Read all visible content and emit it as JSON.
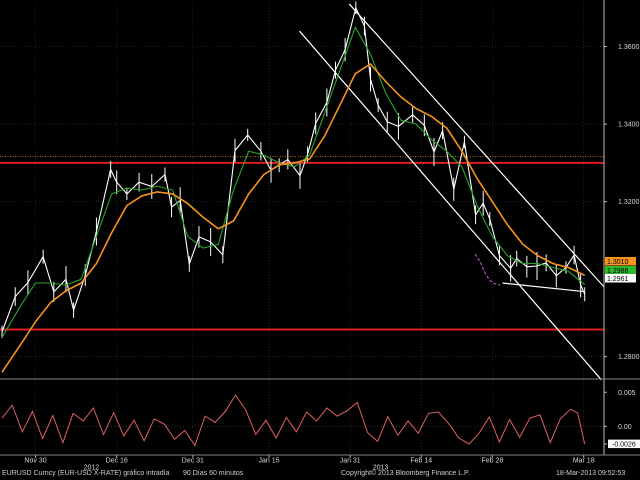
{
  "chart_data": {
    "type": "line",
    "price_axis": {
      "ticks": [
        "1.3600",
        "1.3400",
        "1.3200",
        "1.2800"
      ],
      "tick_values": [
        1.36,
        1.34,
        1.32,
        1.28
      ],
      "ylim": [
        1.2745,
        1.3715
      ],
      "last_price_labels": [
        {
          "value": 1.301,
          "text": "1.3010",
          "color": "#f7941d"
        },
        {
          "value": 1.2986,
          "text": "1.2986",
          "color": "#2eb82e"
        },
        {
          "value": 1.2961,
          "text": "1.2961",
          "color": "#ffffff"
        }
      ]
    },
    "oscillator_axis": {
      "ticks": [
        "0.005",
        "0.00",
        "-0.0026"
      ],
      "tick_values": [
        0.005,
        0.0,
        -0.0026
      ],
      "ylim": [
        -0.0042,
        0.0068
      ]
    },
    "x_ticks": [
      {
        "label": "Nov 30",
        "day": 0
      },
      {
        "label": "Dec 16",
        "day": 16
      },
      {
        "label": "Dec 31",
        "day": 31
      },
      {
        "label": "Jan 15",
        "day": 46
      },
      {
        "label": "Jan 31",
        "day": 62
      },
      {
        "label": "Feb 14",
        "day": 76
      },
      {
        "label": "Feb 28",
        "day": 90
      },
      {
        "label": "Mar 18",
        "day": 108
      }
    ],
    "year_labels": [
      {
        "label": "2012",
        "day": 11
      },
      {
        "label": "2013",
        "day": 68
      }
    ],
    "xlim": [
      -7,
      112
    ],
    "series": [
      {
        "role": "price",
        "color": "#ffffff",
        "days": [
          -6.6,
          -4.0,
          -1.5,
          1.5,
          3.6,
          6.0,
          7.5,
          9.8,
          12.0,
          14.8,
          16.0,
          18.0,
          20.4,
          22.9,
          25.5,
          26.8,
          28.5,
          30.3,
          32.2,
          34.5,
          36.9,
          39.3,
          41.8,
          44.4,
          46.4,
          48.0,
          49.7,
          52.1,
          53.6,
          55.2,
          57.4,
          59.1,
          61.0,
          63.1,
          64.8,
          66.0,
          67.5,
          69.3,
          71.5,
          74.3,
          76.6,
          78.5,
          80.2,
          82.4,
          84.5,
          86.7,
          88.2,
          89.5,
          91.4,
          93.6,
          94.8,
          96.8,
          98.8,
          100.6,
          102.6,
          104.5,
          106.1,
          107.4,
          108.2
        ],
        "values": [
          1.2864,
          1.2955,
          1.2991,
          1.3058,
          1.2967,
          1.3,
          1.292,
          1.301,
          1.3123,
          1.3283,
          1.325,
          1.322,
          1.325,
          1.3239,
          1.327,
          1.3186,
          1.3203,
          1.3039,
          1.3109,
          1.3096,
          1.3063,
          1.3332,
          1.3372,
          1.333,
          1.3281,
          1.3294,
          1.3309,
          1.3267,
          1.3322,
          1.3402,
          1.3456,
          1.3539,
          1.3592,
          1.37,
          1.3653,
          1.3516,
          1.3449,
          1.3406,
          1.3394,
          1.3424,
          1.3397,
          1.3328,
          1.3383,
          1.3232,
          1.3354,
          1.3166,
          1.3196,
          1.3155,
          1.3061,
          1.3028,
          1.3053,
          1.3032,
          1.3034,
          1.3042,
          1.3009,
          1.303,
          1.3062,
          1.2985,
          1.2961
        ]
      },
      {
        "role": "moving-average-fast",
        "color": "#27a627",
        "days": [
          -6.6,
          -3.0,
          0.0,
          3.0,
          6.0,
          9.0,
          12.0,
          15.0,
          18.0,
          21.0,
          24.0,
          27.0,
          30.0,
          33.0,
          36.0,
          39.0,
          42.0,
          45.0,
          48.0,
          51.0,
          54.0,
          57.0,
          60.0,
          63.0,
          66.0,
          69.0,
          72.0,
          75.0,
          78.0,
          81.0,
          84.0,
          87.0,
          90.0,
          93.0,
          96.0,
          99.0,
          102.0,
          105.0,
          108.2
        ],
        "values": [
          1.285,
          1.293,
          1.299,
          1.299,
          1.2985,
          1.3,
          1.311,
          1.322,
          1.3235,
          1.323,
          1.324,
          1.323,
          1.311,
          1.308,
          1.309,
          1.323,
          1.333,
          1.332,
          1.33,
          1.329,
          1.332,
          1.343,
          1.354,
          1.365,
          1.358,
          1.348,
          1.341,
          1.34,
          1.336,
          1.333,
          1.329,
          1.319,
          1.311,
          1.306,
          1.304,
          1.304,
          1.303,
          1.302,
          1.2986
        ]
      },
      {
        "role": "moving-average-slow",
        "color": "#f7941d",
        "days": [
          -6.6,
          -3.0,
          0.0,
          3.0,
          6.0,
          9.0,
          12.0,
          15.0,
          18.0,
          21.0,
          24.0,
          27.0,
          30.0,
          33.0,
          36.0,
          39.0,
          42.0,
          45.0,
          48.0,
          51.0,
          54.0,
          57.0,
          60.0,
          63.0,
          66.0,
          69.0,
          72.0,
          75.0,
          78.0,
          81.0,
          84.0,
          87.0,
          90.0,
          93.0,
          96.0,
          99.0,
          102.0,
          105.0,
          108.2
        ],
        "values": [
          1.276,
          1.283,
          1.289,
          1.294,
          1.297,
          1.299,
          1.304,
          1.312,
          1.319,
          1.3215,
          1.3225,
          1.322,
          1.3195,
          1.316,
          1.313,
          1.315,
          1.322,
          1.327,
          1.3295,
          1.33,
          1.331,
          1.337,
          1.345,
          1.353,
          1.3555,
          1.351,
          1.347,
          1.344,
          1.342,
          1.339,
          1.333,
          1.326,
          1.32,
          1.314,
          1.309,
          1.306,
          1.304,
          1.303,
          1.301
        ]
      },
      {
        "role": "oscillator",
        "color": "#e06060",
        "days": [
          -6.6,
          -4.6,
          -2.6,
          -0.6,
          1.4,
          3.4,
          5.4,
          7.4,
          9.4,
          11.4,
          13.4,
          15.4,
          17.4,
          19.4,
          21.4,
          23.4,
          25.4,
          27.4,
          29.4,
          31.4,
          33.4,
          35.4,
          37.4,
          39.4,
          41.4,
          43.4,
          45.4,
          47.4,
          49.4,
          51.4,
          53.4,
          55.4,
          57.4,
          59.4,
          61.4,
          63.4,
          65.4,
          67.4,
          69.4,
          71.4,
          73.4,
          75.4,
          77.4,
          79.4,
          81.4,
          83.4,
          85.4,
          87.4,
          89.4,
          91.4,
          93.4,
          95.4,
          97.4,
          99.4,
          101.4,
          103.4,
          105.4,
          106.8,
          108.2
        ],
        "values": [
          0.0012,
          0.0031,
          -0.0008,
          0.0022,
          -0.0018,
          0.0016,
          -0.0024,
          0.0019,
          0.0008,
          0.0027,
          -0.0012,
          0.002,
          -0.0014,
          0.0009,
          -0.0021,
          0.0011,
          0.0003,
          -0.0019,
          -0.0006,
          -0.0028,
          0.0015,
          0.0006,
          0.0022,
          0.0046,
          0.0024,
          -0.0012,
          0.0009,
          -0.0017,
          0.0013,
          -0.0008,
          0.0021,
          0.0008,
          0.0027,
          0.0015,
          0.0023,
          0.0035,
          -0.0009,
          -0.0022,
          0.0014,
          -0.0013,
          0.0008,
          -0.001,
          0.0019,
          0.0021,
          0.0004,
          -0.0017,
          -0.0026,
          -0.001,
          0.0014,
          -0.0023,
          0.001,
          -0.0016,
          0.0012,
          0.0017,
          -0.0024,
          0.0011,
          0.0025,
          0.002,
          -0.0026
        ]
      }
    ],
    "horizontal_levels": [
      {
        "value": 1.33,
        "color": "#e01f1f"
      },
      {
        "value": 1.287,
        "color": "#e01f1f"
      }
    ],
    "dotted_level": {
      "value": 1.3308,
      "color": "#f7941d"
    },
    "trend_lines": [
      {
        "color": "#ffffff",
        "days": [
          61.8,
          112.0
        ],
        "values": [
          1.371,
          1.298
        ]
      },
      {
        "color": "#ffffff",
        "days": [
          52.0,
          111.5
        ],
        "values": [
          1.364,
          1.274
        ]
      },
      {
        "color": "#ffffff",
        "days": [
          92.0,
          108.0
        ],
        "values": [
          1.299,
          1.2968
        ]
      }
    ],
    "dashed_curve": {
      "color": "#b455c8",
      "days": [
        86.6,
        87.6,
        88.8,
        90.0,
        91.5
      ],
      "values": [
        1.3065,
        1.3045,
        1.301,
        1.299,
        1.2985
      ]
    }
  },
  "footer": {
    "security": "EURUSD Curncy (EUR-USD X-RATE) gráfico intradía",
    "period": "90 Días 60 minutos",
    "copyright": "Copyright© 2013 Bloomberg Finance L.P.",
    "timestamp": "18-Mar-2013 09:52:53"
  }
}
